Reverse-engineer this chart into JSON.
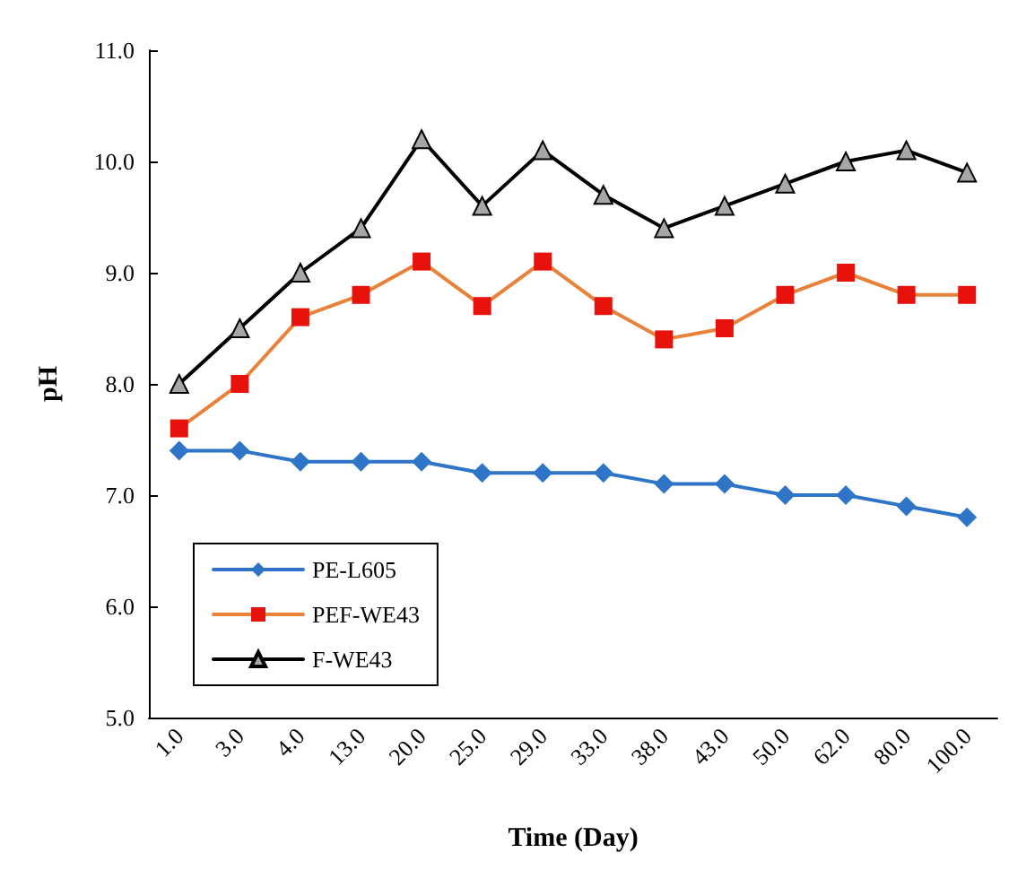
{
  "chart_data": {
    "type": "line",
    "xlabel": "Time (Day)",
    "ylabel": "pH",
    "categories": [
      "1.0",
      "3.0",
      "4.0",
      "13.0",
      "20.0",
      "25.0",
      "29.0",
      "33.0",
      "38.0",
      "43.0",
      "50.0",
      "62.0",
      "80.0",
      "100.0"
    ],
    "series": [
      {
        "name": "PE-L605",
        "color": "#2e75c8",
        "marker": "diamond",
        "values": [
          7.4,
          7.4,
          7.3,
          7.3,
          7.3,
          7.2,
          7.2,
          7.2,
          7.1,
          7.1,
          7.0,
          7.0,
          6.9,
          6.8
        ]
      },
      {
        "name": "PEF-WE43",
        "color": "#e8823a",
        "marker": "square",
        "values": [
          7.6,
          8.0,
          8.6,
          8.8,
          9.1,
          8.7,
          9.1,
          8.7,
          8.4,
          8.5,
          8.8,
          9.0,
          8.8,
          8.8
        ]
      },
      {
        "name": "F-WE43",
        "color": "#000000",
        "marker": "triangle",
        "values": [
          8.0,
          8.5,
          9.0,
          9.4,
          10.2,
          9.6,
          10.1,
          9.7,
          9.4,
          9.6,
          9.8,
          10.0,
          10.1,
          9.9
        ]
      }
    ],
    "ylim": [
      5,
      11
    ],
    "yticks": [
      {
        "value": 5,
        "label": "5.0"
      },
      {
        "value": 6,
        "label": "6.0"
      },
      {
        "value": 7,
        "label": "7.0"
      },
      {
        "value": 8,
        "label": "8.0"
      },
      {
        "value": 9,
        "label": "9.0"
      },
      {
        "value": 10,
        "label": "10.0"
      },
      {
        "value": 11,
        "label": "11.0"
      }
    ],
    "grid": false,
    "legend": "bottom left",
    "line_style": "solid"
  }
}
